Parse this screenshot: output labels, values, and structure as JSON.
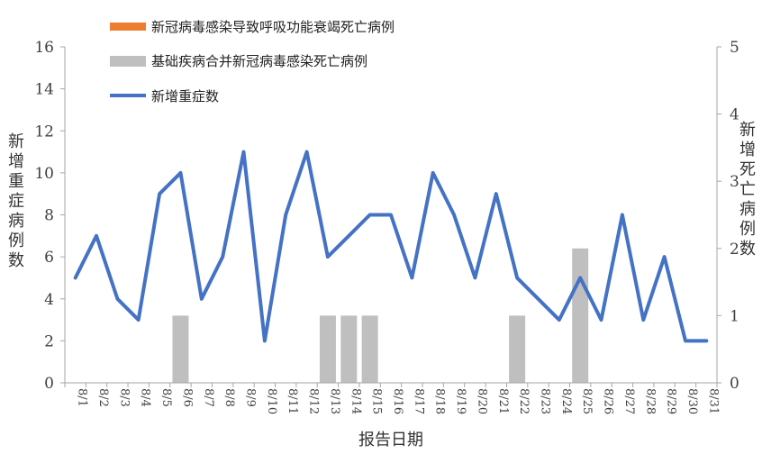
{
  "chart_data": {
    "type": "bar+line",
    "title": "",
    "xlabel": "报告日期",
    "ylabel_left": "新增重症病例数",
    "ylabel_right": "新增死亡病例数",
    "ylim_left": [
      0,
      16
    ],
    "ylim_right": [
      0,
      5
    ],
    "yticks_left": [
      "0",
      "2",
      "4",
      "6",
      "8",
      "10",
      "12",
      "14",
      "16"
    ],
    "yticks_right": [
      "0",
      "1",
      "2",
      "3",
      "4",
      "5"
    ],
    "categories": [
      "8/1",
      "8/2",
      "8/3",
      "8/4",
      "8/5",
      "8/6",
      "8/7",
      "8/8",
      "8/9",
      "8/10",
      "8/11",
      "8/12",
      "8/13",
      "8/14",
      "8/15",
      "8/16",
      "8/17",
      "8/18",
      "8/19",
      "8/20",
      "8/21",
      "8/22",
      "8/23",
      "8/24",
      "8/25",
      "8/26",
      "8/27",
      "8/28",
      "8/29",
      "8/30",
      "8/31"
    ],
    "legend_position": "top",
    "grid": false,
    "series": [
      {
        "name": "新冠病毒感染导致呼吸功能衰竭死亡病例",
        "type": "bar",
        "axis": "right",
        "color": "#ED7D31",
        "values": [
          0,
          0,
          0,
          0,
          0,
          0,
          0,
          0,
          0,
          0,
          0,
          0,
          0,
          0,
          0,
          0,
          0,
          0,
          0,
          0,
          0,
          0,
          0,
          0,
          0,
          0,
          0,
          0,
          0,
          0,
          0
        ]
      },
      {
        "name": "基础疾病合并新冠病毒感染死亡病例",
        "type": "bar",
        "axis": "right",
        "color": "#BFBFBF",
        "values": [
          0,
          0,
          0,
          0,
          0,
          1,
          0,
          0,
          0,
          0,
          0,
          0,
          1,
          1,
          1,
          0,
          0,
          0,
          0,
          0,
          0,
          1,
          0,
          0,
          2,
          0,
          0,
          0,
          0,
          0,
          0
        ]
      },
      {
        "name": "新增重症数",
        "type": "line",
        "axis": "left",
        "color": "#4472C4",
        "values": [
          5,
          7,
          4,
          3,
          9,
          10,
          4,
          6,
          11,
          2,
          8,
          11,
          6,
          7,
          8,
          8,
          5,
          10,
          8,
          5,
          9,
          5,
          4,
          3,
          5,
          3,
          8,
          3,
          6,
          2,
          2
        ]
      }
    ]
  }
}
